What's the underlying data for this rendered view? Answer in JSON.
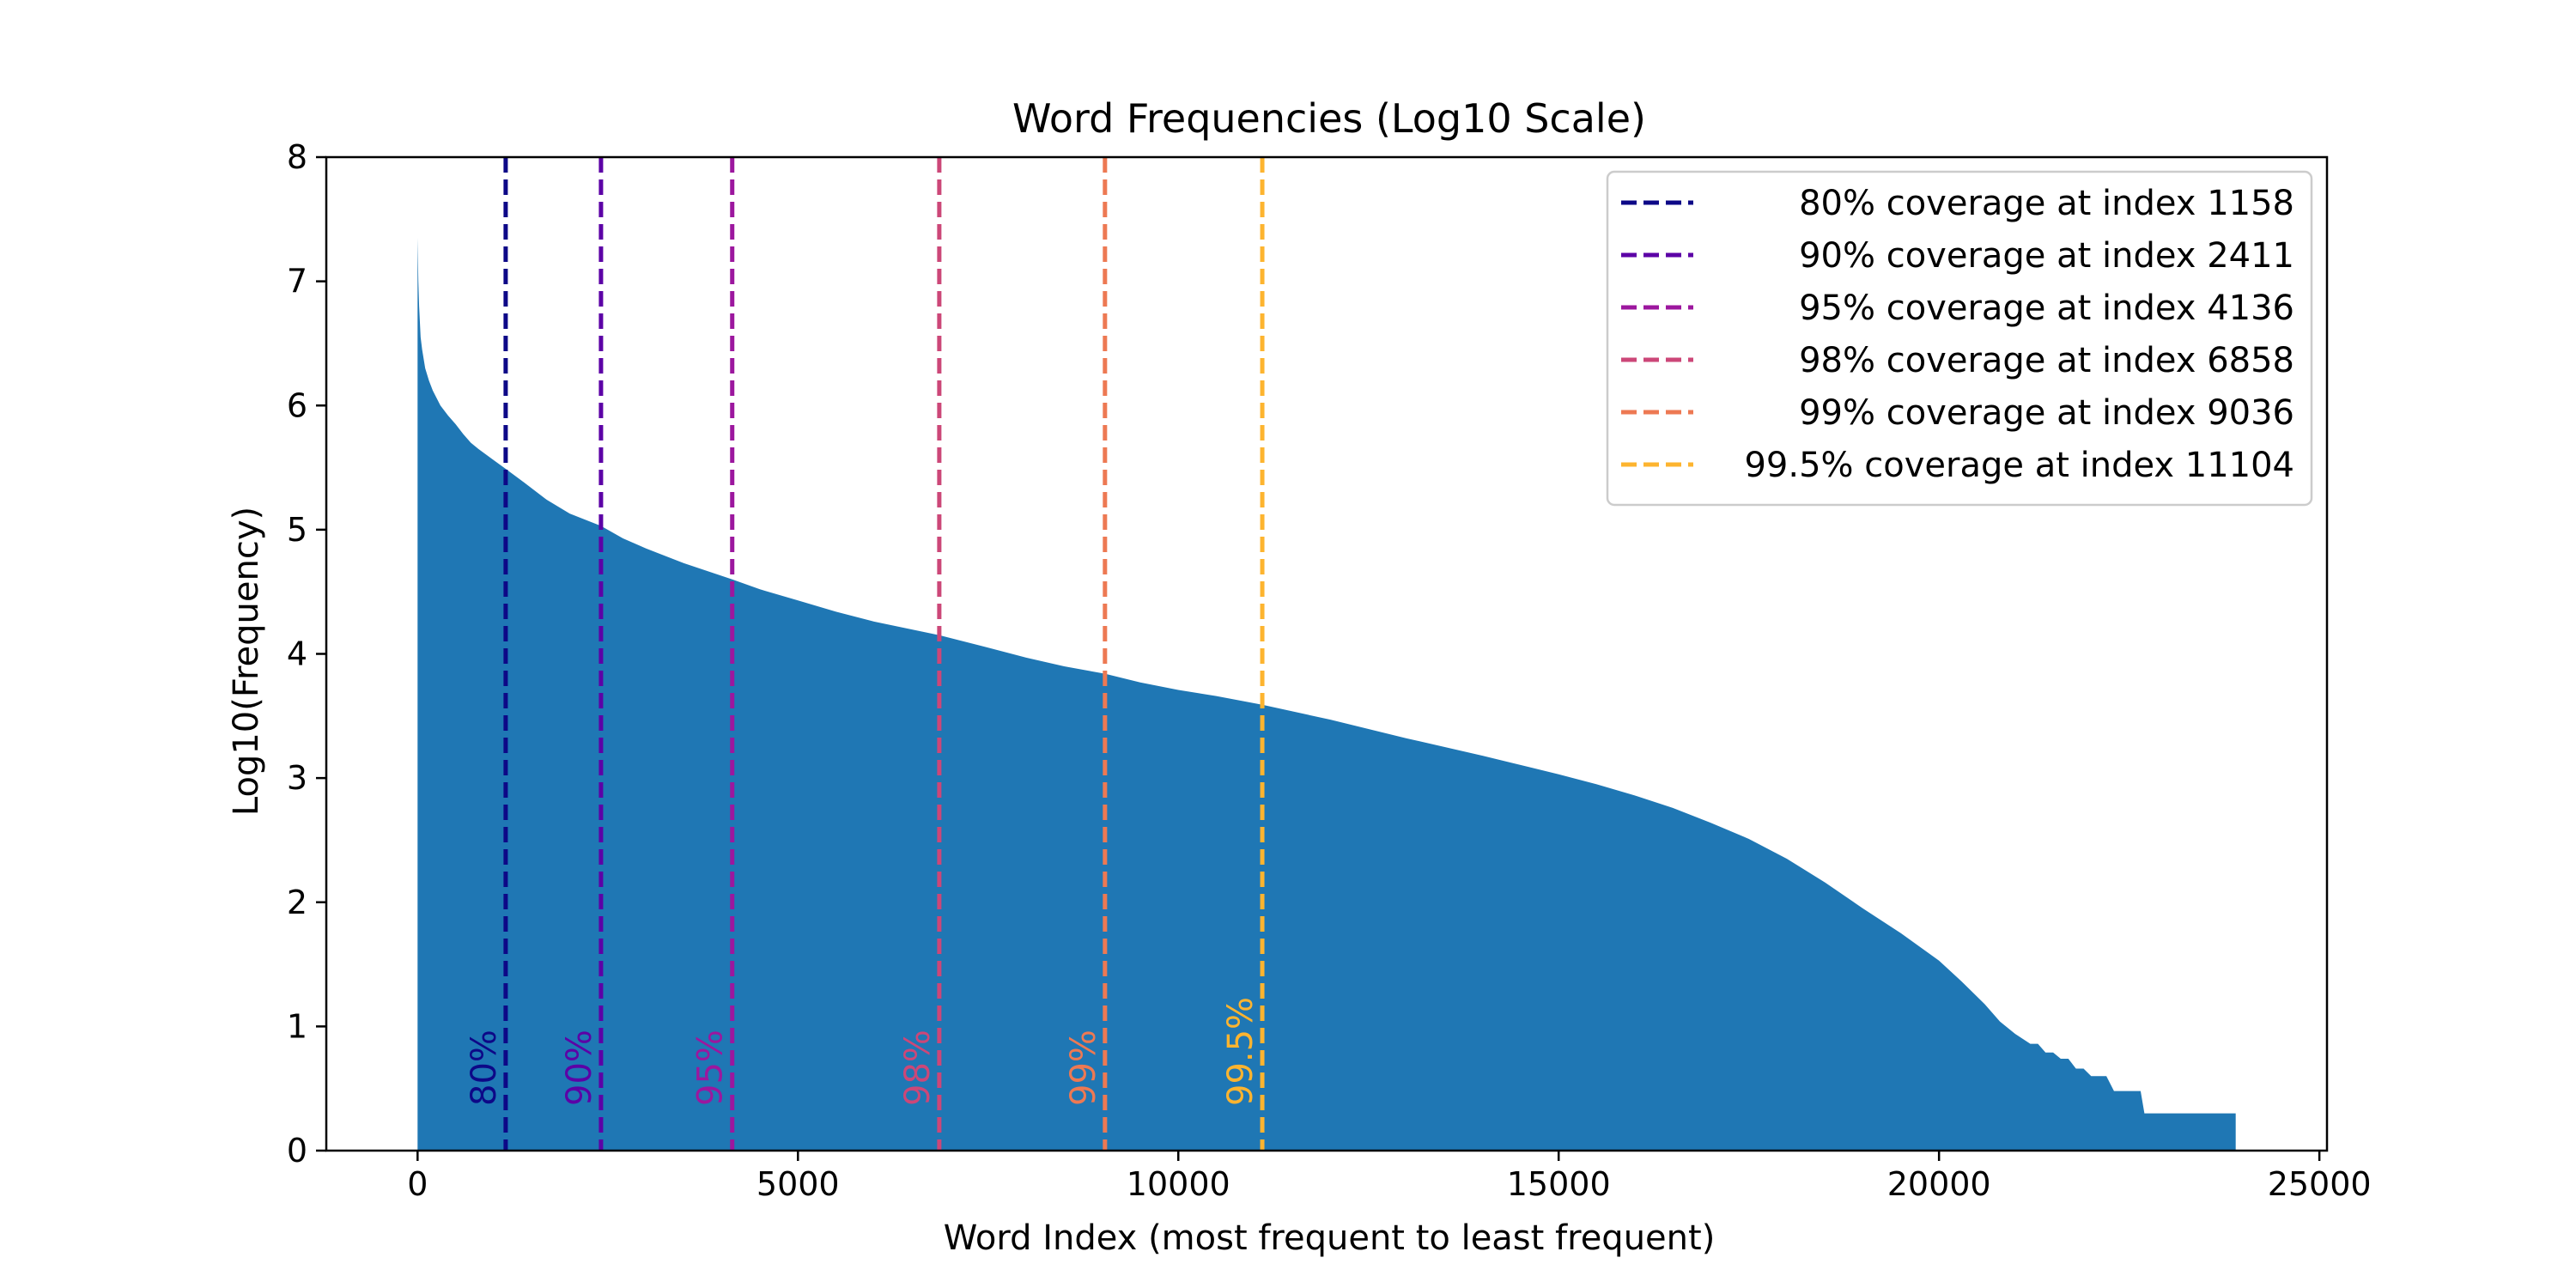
{
  "chart_data": {
    "type": "area",
    "title": "Word Frequencies (Log10 Scale)",
    "xlabel": "Word Index (most frequent to least frequent)",
    "ylabel": "Log10(Frequency)",
    "xlim": [
      -1200,
      25100
    ],
    "ylim": [
      0,
      8
    ],
    "xticks": [
      0,
      5000,
      10000,
      15000,
      20000,
      25000
    ],
    "yticks": [
      0,
      1,
      2,
      3,
      4,
      5,
      6,
      7,
      8
    ],
    "grid": false,
    "legend_position": "top-right",
    "fill_color": "#1f77b4",
    "series": [
      {
        "x": [
          0,
          10,
          20,
          40,
          60,
          100,
          150,
          200,
          300,
          400,
          500,
          600,
          700,
          800,
          1000,
          1158,
          1400,
          1700,
          2000,
          2411,
          2700,
          3000,
          3500,
          4136,
          4500,
          5000,
          5500,
          6000,
          6858,
          7500,
          8000,
          8500,
          9036,
          9500,
          10000,
          10500,
          11104,
          12000,
          13000,
          14000,
          15000,
          15500,
          16000,
          16500,
          17000,
          17500,
          18000,
          18500,
          19000,
          19500,
          20000,
          20300,
          20600,
          20800,
          21000,
          21200,
          21300,
          21400,
          21500,
          21600,
          21700,
          21800,
          21900,
          22000,
          22100,
          22200,
          22300,
          22650,
          22700,
          23000,
          23500,
          23700,
          23900
        ],
        "y": [
          7.35,
          7.0,
          6.8,
          6.55,
          6.45,
          6.3,
          6.2,
          6.12,
          6.0,
          5.92,
          5.85,
          5.77,
          5.7,
          5.65,
          5.56,
          5.49,
          5.38,
          5.24,
          5.13,
          5.03,
          4.93,
          4.85,
          4.73,
          4.6,
          4.52,
          4.43,
          4.34,
          4.26,
          4.15,
          4.05,
          3.97,
          3.9,
          3.84,
          3.77,
          3.71,
          3.66,
          3.59,
          3.47,
          3.32,
          3.18,
          3.03,
          2.95,
          2.86,
          2.76,
          2.64,
          2.51,
          2.35,
          2.16,
          1.95,
          1.75,
          1.53,
          1.36,
          1.18,
          1.04,
          0.94,
          0.86,
          0.86,
          0.79,
          0.79,
          0.74,
          0.74,
          0.66,
          0.66,
          0.6,
          0.6,
          0.6,
          0.48,
          0.48,
          0.3,
          0.3,
          0.3,
          0.3,
          0.3
        ]
      }
    ],
    "coverage_lines": [
      {
        "index": 1158,
        "label": "80%",
        "legend": "80% coverage at index 1158",
        "color": "#0d0887"
      },
      {
        "index": 2411,
        "label": "90%",
        "legend": "90% coverage at index 2411",
        "color": "#5c01a6"
      },
      {
        "index": 4136,
        "label": "95%",
        "legend": "95% coverage at index 4136",
        "color": "#9c179e"
      },
      {
        "index": 6858,
        "label": "98%",
        "legend": "98% coverage at index 6858",
        "color": "#cc4778"
      },
      {
        "index": 9036,
        "label": "99%",
        "legend": "99% coverage at index 9036",
        "color": "#ed7953"
      },
      {
        "index": 11104,
        "label": "99.5%",
        "legend": "99.5% coverage at index 11104",
        "color": "#fdb42f"
      }
    ]
  }
}
